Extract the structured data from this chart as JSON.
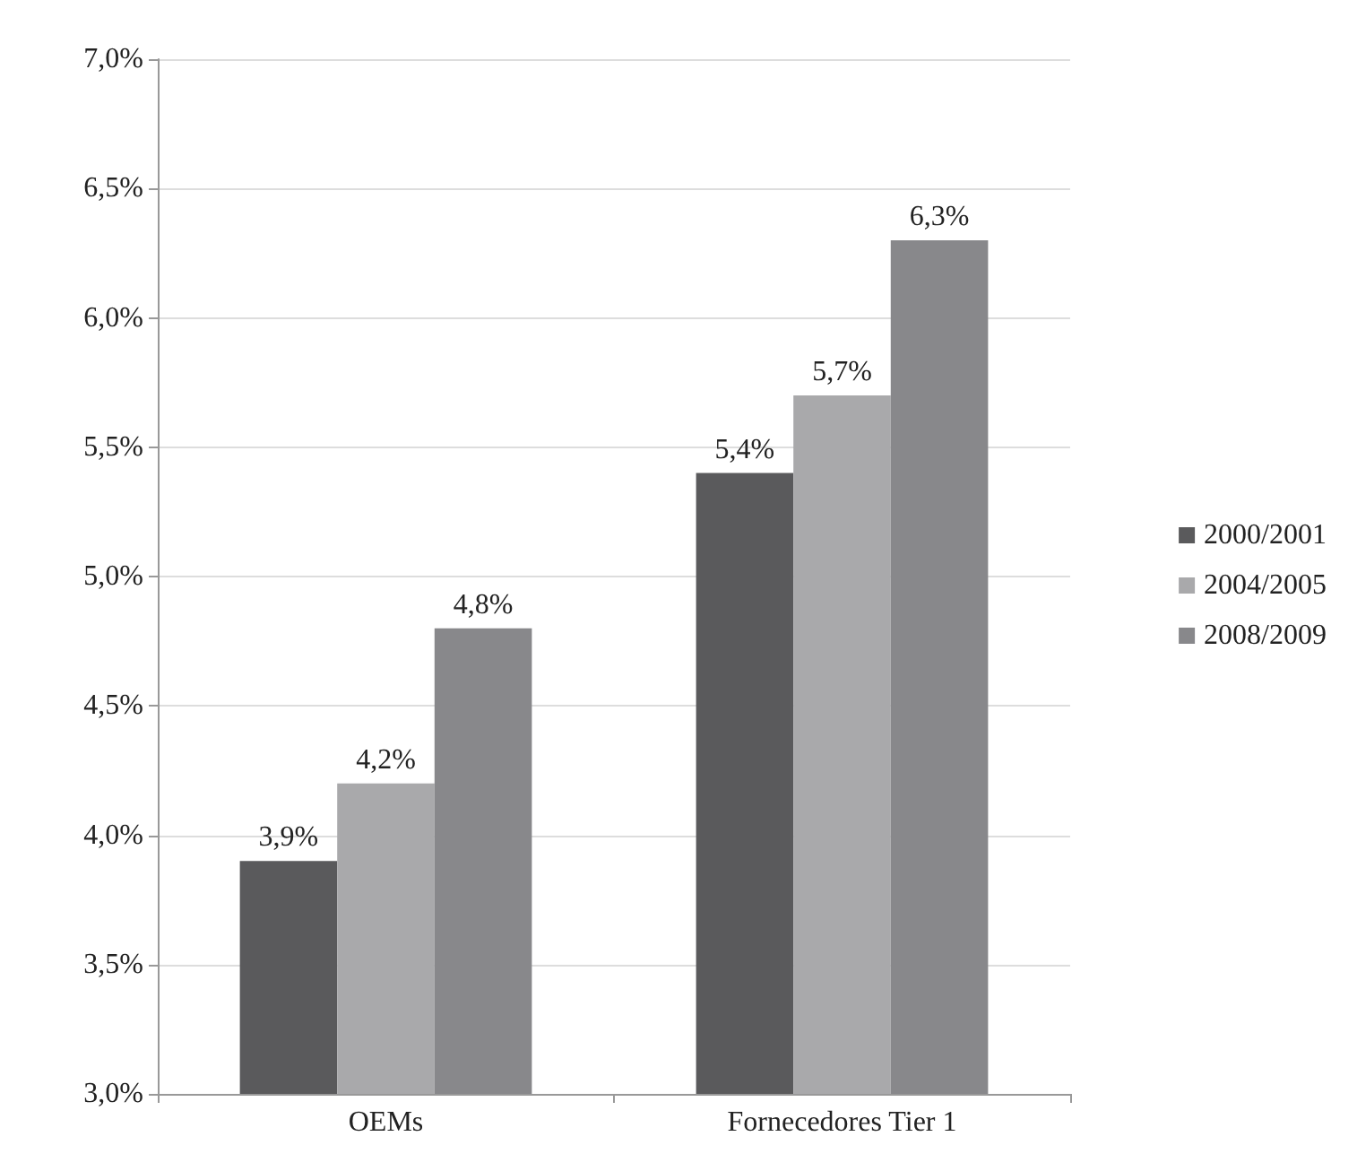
{
  "chart_data": {
    "type": "bar",
    "categories": [
      "OEMs",
      "Fornecedores Tier 1"
    ],
    "series": [
      {
        "name": "2000/2001",
        "color": "#5a5a5c",
        "values": [
          3.9,
          5.4
        ],
        "value_labels": [
          "3,9%",
          "5,4%"
        ]
      },
      {
        "name": "2004/2005",
        "color": "#a9a9ab",
        "values": [
          4.2,
          5.7
        ],
        "value_labels": [
          "4,2%",
          "5,7%"
        ]
      },
      {
        "name": "2008/2009",
        "color": "#88888b",
        "values": [
          4.8,
          6.3
        ],
        "value_labels": [
          "4,8%",
          "6,3%"
        ]
      }
    ],
    "ylim": [
      3,
      7
    ],
    "yticks": [
      {
        "value": 3,
        "label": "3,0%"
      },
      {
        "value": 3.5,
        "label": "3,5%"
      },
      {
        "value": 4,
        "label": "4,0%"
      },
      {
        "value": 4.5,
        "label": "4,5%"
      },
      {
        "value": 5,
        "label": "5,0%"
      },
      {
        "value": 5.5,
        "label": "5,5%"
      },
      {
        "value": 6,
        "label": "6,0%"
      },
      {
        "value": 6.5,
        "label": "6,5%"
      },
      {
        "value": 7,
        "label": "7,0%"
      }
    ],
    "grid": "y",
    "legend": "right"
  }
}
